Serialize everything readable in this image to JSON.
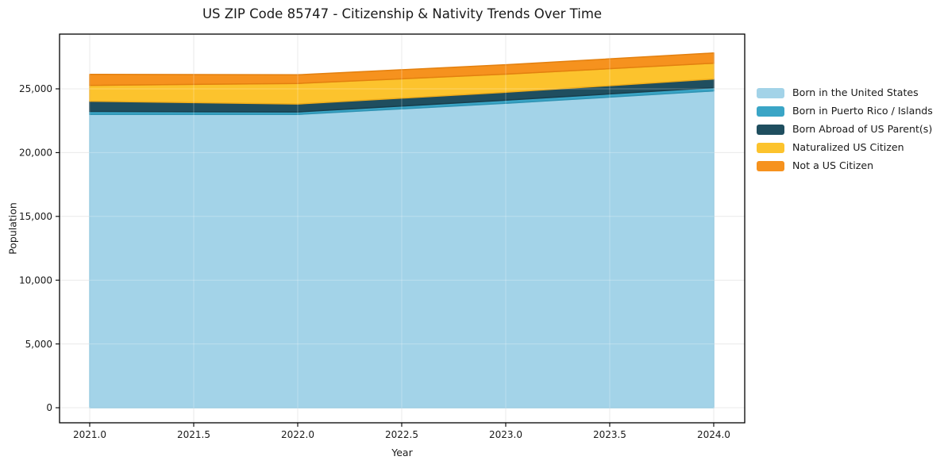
{
  "figure": {
    "title": "US ZIP Code 85747 - Citizenship & Nativity Trends Over Time",
    "background": "#ffffff"
  },
  "chart_data": {
    "type": "area",
    "stacked": true,
    "title": "US ZIP Code 85747 - Citizenship & Nativity Trends Over Time",
    "xlabel": "Year",
    "ylabel": "Population",
    "x": [
      2021,
      2022,
      2023,
      2024
    ],
    "series": [
      {
        "name": "Born in the United States",
        "color": "#A3D3E8",
        "edge": "#85C2DC",
        "values": [
          23000,
          23000,
          23870,
          24840
        ]
      },
      {
        "name": "Born in Puerto Rico / Islands",
        "color": "#3AA5C6",
        "edge": "#2F93B3",
        "values": [
          230,
          190,
          240,
          250
        ]
      },
      {
        "name": "Born Abroad of US Parent(s)",
        "color": "#1F4E5F",
        "edge": "#183E4C",
        "values": [
          800,
          620,
          620,
          680
        ]
      },
      {
        "name": "Naturalized US Citizen",
        "color": "#FCC32D",
        "edge": "#EFAC1A",
        "values": [
          1240,
          1610,
          1420,
          1240
        ]
      },
      {
        "name": "Not a US Citizen",
        "color": "#F6921E",
        "edge": "#E3800F",
        "values": [
          870,
          680,
          740,
          800
        ]
      }
    ],
    "totals": [
      26140,
      26100,
      26890,
      27810
    ],
    "xticks": {
      "values": [
        2021.0,
        2021.5,
        2022.0,
        2022.5,
        2023.0,
        2023.5,
        2024.0
      ],
      "labels": [
        "2021.0",
        "2021.5",
        "2022.0",
        "2022.5",
        "2023.0",
        "2023.5",
        "2024.0"
      ]
    },
    "yticks": {
      "values": [
        0,
        5000,
        10000,
        15000,
        20000,
        25000
      ],
      "labels": [
        "0",
        "5,000",
        "10,000",
        "15,000",
        "20,000",
        "25,000"
      ]
    },
    "xlim": [
      2020.855,
      2024.149
    ],
    "ylim": [
      -1180,
      29290
    ],
    "grid": true,
    "legend_position": "right",
    "text_color": "#1a1a1a",
    "grid_color": "#e3e3e3",
    "spine_color": "#000000"
  }
}
